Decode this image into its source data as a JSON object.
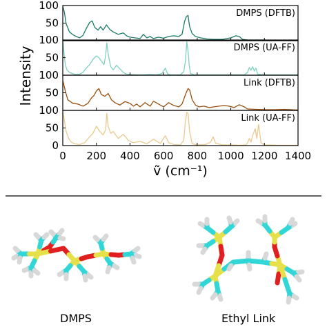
{
  "chart_data": {
    "type": "line",
    "xlabel": "ṽ (cm⁻¹)",
    "ylabel": "Intensity",
    "xlim": [
      0,
      1400
    ],
    "ylim": [
      0,
      100
    ],
    "x_ticks": [
      "0",
      "200",
      "400",
      "600",
      "800",
      "1000",
      "1200",
      "1400"
    ],
    "y_ticks": [
      "0",
      "50",
      "100"
    ],
    "grid": false,
    "panels": [
      {
        "label": "DMPS (DFTB)",
        "color": "#1a7a66",
        "x": [
          0,
          10,
          20,
          40,
          60,
          80,
          100,
          120,
          140,
          160,
          175,
          190,
          210,
          225,
          240,
          260,
          280,
          300,
          330,
          360,
          380,
          400,
          430,
          460,
          480,
          500,
          520,
          540,
          570,
          600,
          630,
          660,
          690,
          710,
          725,
          735,
          745,
          755,
          770,
          790,
          820,
          860,
          900,
          950,
          1000,
          1030,
          1050,
          1070,
          1100,
          1150,
          1200,
          1300,
          1400
        ],
        "y": [
          98,
          80,
          48,
          25,
          17,
          12,
          8,
          15,
          35,
          52,
          56,
          38,
          30,
          40,
          30,
          45,
          32,
          25,
          18,
          22,
          14,
          10,
          8,
          6,
          18,
          8,
          12,
          6,
          10,
          7,
          12,
          14,
          12,
          18,
          55,
          68,
          72,
          40,
          20,
          12,
          8,
          5,
          4,
          4,
          8,
          14,
          12,
          4,
          2,
          2,
          2,
          1,
          1
        ]
      },
      {
        "label": "DMPS (UA-FF)",
        "color": "#7fd0c2",
        "x": [
          0,
          8,
          15,
          25,
          40,
          60,
          80,
          100,
          120,
          140,
          160,
          180,
          200,
          215,
          230,
          245,
          255,
          262,
          270,
          285,
          300,
          320,
          340,
          360,
          380,
          400,
          440,
          480,
          520,
          560,
          590,
          610,
          625,
          640,
          660,
          700,
          720,
          730,
          738,
          745,
          752,
          760,
          780,
          820,
          900,
          1000,
          1080,
          1100,
          1110,
          1120,
          1130,
          1140,
          1150,
          1160,
          1200,
          1300,
          1400
        ],
        "y": [
          100,
          60,
          30,
          15,
          8,
          4,
          2,
          3,
          8,
          20,
          30,
          45,
          55,
          50,
          40,
          30,
          55,
          92,
          60,
          25,
          15,
          28,
          18,
          8,
          3,
          2,
          1,
          1,
          2,
          1,
          5,
          20,
          3,
          1,
          1,
          1,
          10,
          40,
          95,
          70,
          30,
          5,
          1,
          1,
          1,
          1,
          1,
          8,
          22,
          14,
          24,
          12,
          20,
          3,
          1,
          1,
          1
        ]
      },
      {
        "label": "Link (DFTB)",
        "color": "#9a4e0e",
        "x": [
          0,
          15,
          30,
          60,
          90,
          120,
          150,
          170,
          185,
          200,
          215,
          230,
          250,
          270,
          290,
          310,
          340,
          370,
          400,
          420,
          440,
          460,
          490,
          520,
          540,
          570,
          600,
          630,
          660,
          690,
          710,
          730,
          745,
          755,
          770,
          790,
          810,
          840,
          870,
          900,
          930,
          960,
          990,
          1020,
          1050,
          1080,
          1100,
          1150,
          1200,
          1260,
          1320,
          1360,
          1400
        ],
        "y": [
          85,
          55,
          30,
          20,
          18,
          12,
          20,
          35,
          42,
          55,
          62,
          45,
          40,
          48,
          30,
          22,
          15,
          25,
          20,
          12,
          18,
          10,
          22,
          12,
          26,
          18,
          10,
          22,
          14,
          10,
          18,
          45,
          62,
          58,
          30,
          15,
          10,
          12,
          8,
          10,
          12,
          14,
          12,
          8,
          16,
          10,
          4,
          3,
          2,
          2,
          3,
          2,
          1
        ]
      },
      {
        "label": "Link (UA-FF)",
        "color": "#e9c98e",
        "x": [
          0,
          10,
          20,
          35,
          50,
          70,
          100,
          130,
          160,
          180,
          200,
          220,
          240,
          255,
          262,
          270,
          285,
          300,
          330,
          360,
          390,
          420,
          460,
          500,
          540,
          580,
          610,
          630,
          660,
          700,
          720,
          730,
          738,
          746,
          755,
          770,
          800,
          850,
          880,
          895,
          910,
          950,
          1000,
          1050,
          1090,
          1100,
          1110,
          1120,
          1130,
          1145,
          1155,
          1165,
          1180,
          1200,
          1300,
          1400
        ],
        "y": [
          95,
          70,
          40,
          20,
          10,
          5,
          3,
          8,
          25,
          35,
          55,
          40,
          30,
          45,
          92,
          55,
          35,
          40,
          20,
          32,
          15,
          8,
          12,
          5,
          18,
          6,
          28,
          8,
          3,
          2,
          15,
          70,
          95,
          90,
          40,
          5,
          2,
          3,
          10,
          25,
          6,
          2,
          2,
          1,
          2,
          8,
          20,
          10,
          28,
          48,
          20,
          60,
          8,
          2,
          1,
          1
        ]
      }
    ]
  },
  "captions": {
    "left_molecule": "DMPS",
    "right_molecule": "Ethyl Link"
  }
}
